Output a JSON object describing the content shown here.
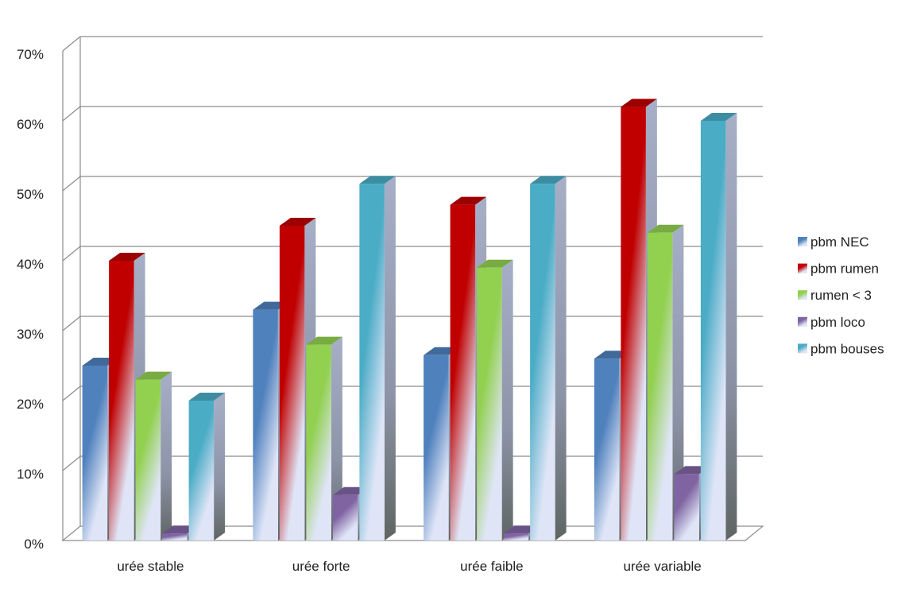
{
  "chart_data": {
    "type": "bar",
    "subtype": "3d-clustered-column",
    "title": "",
    "xlabel": "",
    "ylabel": "",
    "ylim": [
      0,
      70
    ],
    "y_ticks": [
      "0%",
      "10%",
      "20%",
      "30%",
      "40%",
      "50%",
      "60%",
      "70%"
    ],
    "unit": "%",
    "grid": true,
    "legend_position": "right",
    "categories": [
      "urée stable",
      "urée forte",
      "urée faible",
      "urée variable"
    ],
    "series": [
      {
        "name": "pbm NEC",
        "color": "#4f81bd",
        "values": [
          25,
          33,
          26.5,
          26
        ]
      },
      {
        "name": "pbm rumen",
        "color": "#c00000",
        "values": [
          40,
          45,
          48,
          62
        ]
      },
      {
        "name": "rumen < 3",
        "color": "#92d050",
        "values": [
          23,
          28,
          39,
          44
        ]
      },
      {
        "name": "pbm loco",
        "color": "#8064a2",
        "values": [
          1,
          6.5,
          1,
          9.5
        ]
      },
      {
        "name": "pbm bouses",
        "color": "#4bacc6",
        "values": [
          20,
          51,
          51,
          60
        ]
      }
    ]
  }
}
